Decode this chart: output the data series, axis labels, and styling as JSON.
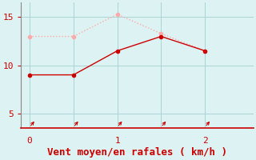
{
  "xlabel": "Vent moyen/en rafales ( km/h )",
  "x_wind": [
    0,
    0.5,
    1.0,
    1.5,
    2.0
  ],
  "y_mean": [
    9,
    9,
    11.5,
    13,
    11.5
  ],
  "y_gust": [
    13,
    13,
    15.3,
    13.3,
    11.5
  ],
  "color_mean": "#cc0000",
  "color_gust": "#ffaaaa",
  "bg_color": "#ddf2f2",
  "axis_color": "#cc0000",
  "label_color": "#cc0000",
  "spine_color": "#888888",
  "ylim": [
    3.5,
    16.5
  ],
  "xlim": [
    -0.1,
    2.55
  ],
  "yticks": [
    5,
    10,
    15
  ],
  "xticks": [
    0,
    0.5,
    1.0,
    1.5,
    2.0
  ],
  "xtick_labels": [
    "0",
    "",
    "1",
    "",
    "2"
  ],
  "grid_color": "#aad4d4",
  "marker_size": 3,
  "line_width": 1.0,
  "xlabel_fontsize": 9,
  "tick_fontsize": 8
}
